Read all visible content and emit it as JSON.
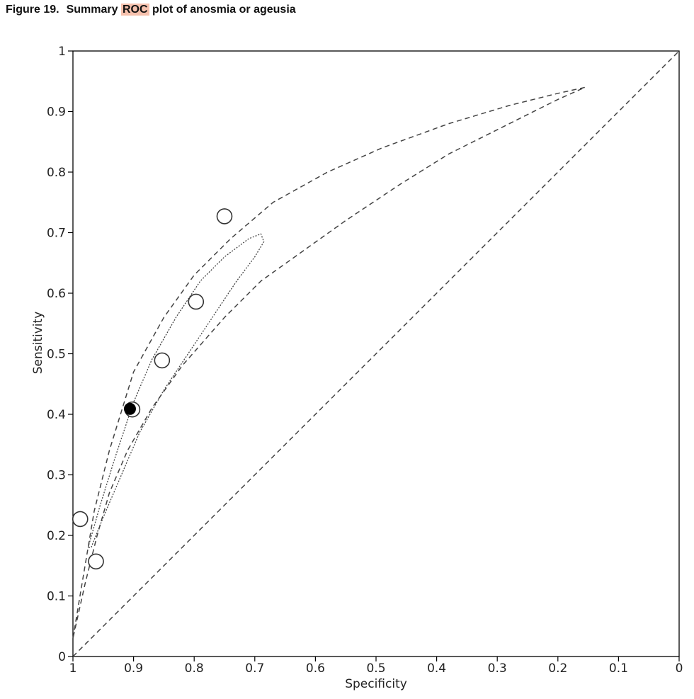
{
  "figure": {
    "label": "Figure 19.",
    "title_pre": "Summary",
    "title_highlight": "ROC",
    "title_post": "plot of anosmia or ageusia"
  },
  "chart_data": {
    "type": "scatter",
    "xlabel": "Specificity",
    "ylabel": "Sensitivity",
    "x_reversed": true,
    "xlim": [
      1,
      0
    ],
    "ylim": [
      0,
      1
    ],
    "x_ticks": [
      "1",
      "0.9",
      "0.8",
      "0.7",
      "0.6",
      "0.5",
      "0.4",
      "0.3",
      "0.2",
      "0.1",
      "0"
    ],
    "y_ticks": [
      "0",
      "0.1",
      "0.2",
      "0.3",
      "0.4",
      "0.5",
      "0.6",
      "0.7",
      "0.8",
      "0.9",
      "1"
    ],
    "grid": false,
    "studies": [
      {
        "specificity": 0.988,
        "sensitivity": 0.227
      },
      {
        "specificity": 0.962,
        "sensitivity": 0.157
      },
      {
        "specificity": 0.902,
        "sensitivity": 0.408
      },
      {
        "specificity": 0.853,
        "sensitivity": 0.489
      },
      {
        "specificity": 0.797,
        "sensitivity": 0.586
      },
      {
        "specificity": 0.75,
        "sensitivity": 0.727
      }
    ],
    "summary_point": {
      "specificity": 0.906,
      "sensitivity": 0.409
    },
    "confidence_region": [
      [
        0.975,
        0.18
      ],
      [
        0.955,
        0.25
      ],
      [
        0.93,
        0.33
      ],
      [
        0.9,
        0.42
      ],
      [
        0.87,
        0.49
      ],
      [
        0.83,
        0.56
      ],
      [
        0.79,
        0.62
      ],
      [
        0.75,
        0.66
      ],
      [
        0.71,
        0.69
      ],
      [
        0.69,
        0.698
      ],
      [
        0.685,
        0.685
      ],
      [
        0.7,
        0.66
      ],
      [
        0.73,
        0.62
      ],
      [
        0.77,
        0.56
      ],
      [
        0.81,
        0.5
      ],
      [
        0.85,
        0.44
      ],
      [
        0.89,
        0.37
      ],
      [
        0.92,
        0.3
      ],
      [
        0.95,
        0.23
      ],
      [
        0.97,
        0.18
      ],
      [
        0.975,
        0.18
      ]
    ],
    "prediction_region": [
      [
        1.0,
        0.03
      ],
      [
        0.985,
        0.12
      ],
      [
        0.965,
        0.24
      ],
      [
        0.94,
        0.34
      ],
      [
        0.9,
        0.47
      ],
      [
        0.85,
        0.56
      ],
      [
        0.8,
        0.63
      ],
      [
        0.74,
        0.69
      ],
      [
        0.67,
        0.75
      ],
      [
        0.58,
        0.8
      ],
      [
        0.49,
        0.84
      ],
      [
        0.38,
        0.88
      ],
      [
        0.28,
        0.91
      ],
      [
        0.2,
        0.93
      ],
      [
        0.155,
        0.94
      ],
      [
        0.2,
        0.92
      ],
      [
        0.28,
        0.88
      ],
      [
        0.38,
        0.83
      ],
      [
        0.46,
        0.78
      ],
      [
        0.55,
        0.72
      ],
      [
        0.62,
        0.67
      ],
      [
        0.69,
        0.62
      ],
      [
        0.75,
        0.56
      ],
      [
        0.82,
        0.48
      ],
      [
        0.87,
        0.41
      ],
      [
        0.91,
        0.34
      ],
      [
        0.94,
        0.27
      ],
      [
        0.96,
        0.2
      ],
      [
        0.98,
        0.12
      ],
      [
        1.0,
        0.03
      ]
    ],
    "reference_line": [
      [
        1,
        0
      ],
      [
        0,
        1
      ]
    ]
  }
}
